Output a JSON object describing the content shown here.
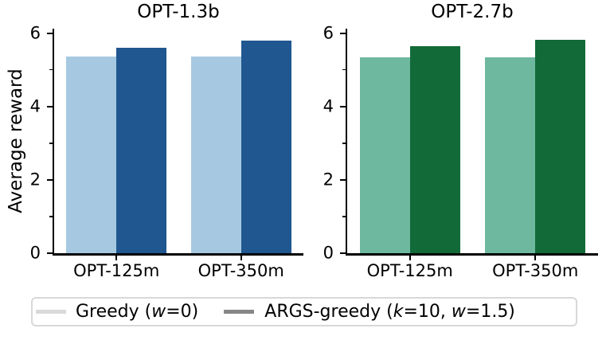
{
  "figure": {
    "background": "#ffffff",
    "ylabel": "Average reward",
    "text_color": "#000000",
    "spine_color": "#000000"
  },
  "chart_data": [
    {
      "type": "bar",
      "title": "OPT-1.3b",
      "categories": [
        "OPT-125m",
        "OPT-350m"
      ],
      "series": [
        {
          "name": "Greedy (w=0)",
          "color": "#a6c9e1",
          "values": [
            5.35,
            5.35
          ]
        },
        {
          "name": "ARGS-greedy (k=10, w=1.5)",
          "color": "#205790",
          "values": [
            5.61,
            5.8
          ]
        }
      ],
      "ylabel": "Average reward",
      "ylim": [
        0,
        6.12
      ],
      "yticks": [
        0,
        2,
        4,
        6
      ],
      "yticks_minor": [
        1,
        3,
        5
      ],
      "grid": false,
      "legend_position": "figure-bottom"
    },
    {
      "type": "bar",
      "title": "OPT-2.7b",
      "categories": [
        "OPT-125m",
        "OPT-350m"
      ],
      "series": [
        {
          "name": "Greedy (w=0)",
          "color": "#6fb8a0",
          "values": [
            5.33,
            5.33
          ]
        },
        {
          "name": "ARGS-greedy (k=10, w=1.5)",
          "color": "#126a38",
          "values": [
            5.64,
            5.81
          ]
        }
      ],
      "ylabel": "",
      "ylim": [
        0,
        6.12
      ],
      "yticks": [
        0,
        2,
        4,
        6
      ],
      "yticks_minor": [
        1,
        3,
        5
      ],
      "grid": false,
      "legend_position": "figure-bottom"
    }
  ],
  "legend": {
    "entries": [
      {
        "label": "Greedy (w=0)",
        "swatch_color": "#d9d9d9",
        "parts": [
          {
            "t": "Greedy (",
            "i": false
          },
          {
            "t": "w",
            "i": true
          },
          {
            "t": "=0)",
            "i": false
          }
        ]
      },
      {
        "label": "ARGS-greedy (k=10, w=1.5)",
        "swatch_color": "#868686",
        "parts": [
          {
            "t": "ARGS-greedy (",
            "i": false
          },
          {
            "t": "k",
            "i": true
          },
          {
            "t": "=10, ",
            "i": false
          },
          {
            "t": "w",
            "i": true
          },
          {
            "t": "=1.5)",
            "i": false
          }
        ]
      }
    ]
  }
}
